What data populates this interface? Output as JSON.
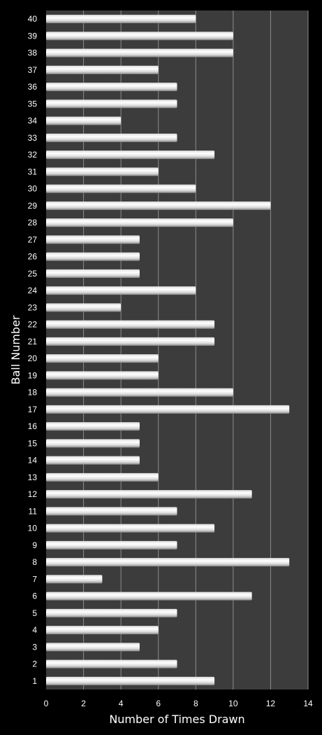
{
  "chart_data": {
    "type": "bar",
    "orientation": "horizontal",
    "title": "",
    "xlabel": "Number of Times Drawn",
    "ylabel": "Ball Number",
    "xlim": [
      0,
      14
    ],
    "xticks": [
      "0",
      "2",
      "4",
      "6",
      "8",
      "10",
      "12",
      "14"
    ],
    "grid": true,
    "legend": "none",
    "categories": [
      "1",
      "2",
      "3",
      "4",
      "5",
      "6",
      "7",
      "8",
      "9",
      "10",
      "11",
      "12",
      "13",
      "14",
      "15",
      "16",
      "17",
      "18",
      "19",
      "20",
      "21",
      "22",
      "23",
      "24",
      "25",
      "26",
      "27",
      "28",
      "29",
      "30",
      "31",
      "32",
      "33",
      "34",
      "35",
      "36",
      "37",
      "38",
      "39",
      "40"
    ],
    "values": [
      9,
      7,
      5,
      6,
      7,
      11,
      3,
      13,
      7,
      9,
      7,
      11,
      6,
      5,
      5,
      5,
      13,
      10,
      6,
      6,
      9,
      9,
      4,
      8,
      5,
      5,
      5,
      10,
      12,
      8,
      6,
      9,
      7,
      4,
      7,
      7,
      6,
      10,
      10,
      8
    ],
    "colors": {
      "page_background": "#000000",
      "plot_background": "#3c3c3c",
      "gridline": "#8c8c8c",
      "bar_light": "#ffffff",
      "bar_mid": "#dcdcdc",
      "bar_dark": "#8a8a8a",
      "text": "#ffffff"
    }
  }
}
